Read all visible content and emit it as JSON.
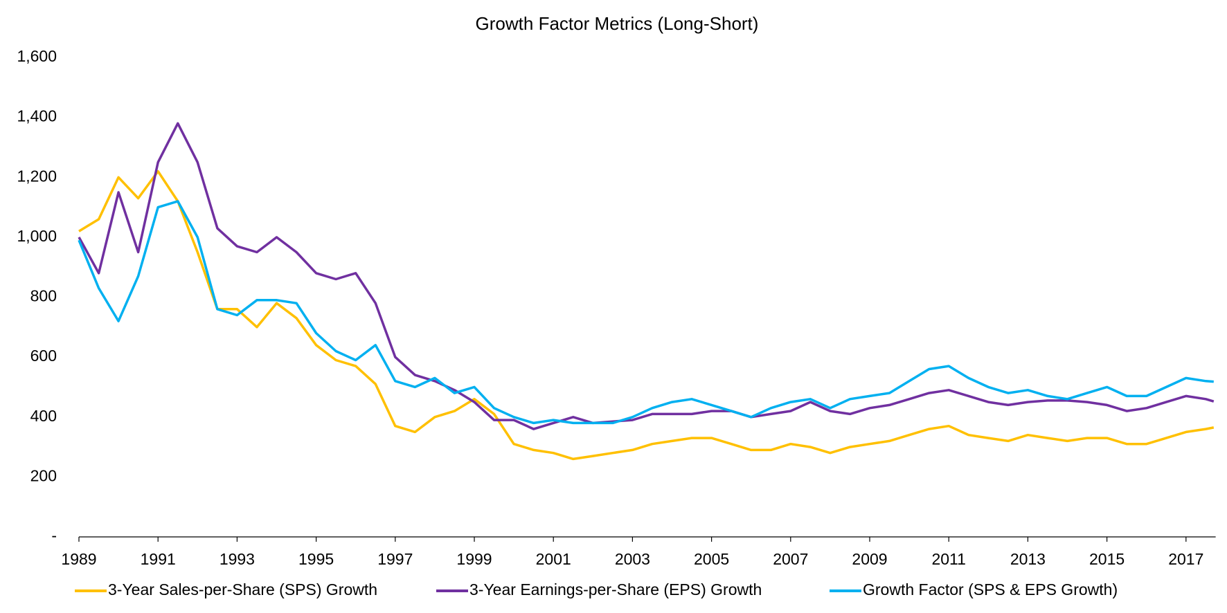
{
  "chart_data": {
    "type": "line",
    "title": "Growth Factor Metrics (Long-Short)",
    "x": [
      1989.0,
      1989.5,
      1990.0,
      1990.5,
      1991.0,
      1991.5,
      1992.0,
      1992.5,
      1993.0,
      1993.5,
      1994.0,
      1994.5,
      1995.0,
      1995.5,
      1996.0,
      1996.5,
      1997.0,
      1997.5,
      1998.0,
      1998.5,
      1999.0,
      1999.5,
      2000.0,
      2000.5,
      2001.0,
      2001.5,
      2002.0,
      2002.5,
      2003.0,
      2003.5,
      2004.0,
      2004.5,
      2005.0,
      2005.5,
      2006.0,
      2006.5,
      2007.0,
      2007.5,
      2008.0,
      2008.5,
      2009.0,
      2009.5,
      2010.0,
      2010.5,
      2011.0,
      2011.5,
      2012.0,
      2012.5,
      2013.0,
      2013.5,
      2014.0,
      2014.5,
      2015.0,
      2015.5,
      2016.0,
      2016.5,
      2017.0,
      2017.5,
      2017.7
    ],
    "series": [
      {
        "name": "3-Year Sales-per-Share (SPS) Growth",
        "color": "#FFC000",
        "values": [
          1020,
          1060,
          1200,
          1130,
          1220,
          1120,
          950,
          760,
          760,
          700,
          780,
          730,
          640,
          590,
          570,
          510,
          370,
          350,
          400,
          420,
          460,
          410,
          310,
          290,
          280,
          260,
          270,
          280,
          290,
          310,
          320,
          330,
          330,
          310,
          290,
          290,
          310,
          300,
          280,
          300,
          310,
          320,
          340,
          360,
          370,
          340,
          330,
          320,
          340,
          330,
          320,
          330,
          330,
          310,
          310,
          330,
          350,
          360,
          365
        ]
      },
      {
        "name": "3-Year Earnings-per-Share (EPS) Growth",
        "color": "#7030A0",
        "values": [
          1000,
          880,
          1150,
          950,
          1250,
          1380,
          1250,
          1030,
          970,
          950,
          1000,
          950,
          880,
          860,
          880,
          780,
          600,
          540,
          520,
          490,
          450,
          390,
          390,
          360,
          380,
          400,
          380,
          385,
          390,
          410,
          410,
          410,
          420,
          420,
          400,
          410,
          420,
          450,
          420,
          410,
          430,
          440,
          460,
          480,
          490,
          470,
          450,
          440,
          450,
          455,
          455,
          450,
          440,
          420,
          430,
          450,
          470,
          460,
          452
        ]
      },
      {
        "name": "Growth Factor (SPS & EPS Growth)",
        "color": "#00B0F0",
        "values": [
          990,
          830,
          720,
          870,
          1100,
          1120,
          1000,
          760,
          740,
          790,
          790,
          780,
          680,
          620,
          590,
          640,
          520,
          500,
          530,
          480,
          500,
          430,
          400,
          380,
          390,
          380,
          380,
          380,
          400,
          430,
          450,
          460,
          440,
          420,
          400,
          430,
          450,
          460,
          430,
          460,
          470,
          480,
          520,
          560,
          570,
          530,
          500,
          480,
          490,
          470,
          460,
          480,
          500,
          470,
          470,
          500,
          530,
          520,
          518
        ]
      }
    ],
    "xlim": [
      1989,
      2017.75
    ],
    "xticks": [
      1989,
      1991,
      1993,
      1995,
      1997,
      1999,
      2001,
      2003,
      2005,
      2007,
      2009,
      2011,
      2013,
      2015,
      2017
    ],
    "ylim": [
      0,
      1600
    ],
    "yticks": [
      {
        "value": 0,
        "label": "-"
      },
      200,
      400,
      600,
      800,
      {
        "value": 1000,
        "label": "1,000"
      },
      {
        "value": 1200,
        "label": "1,200"
      },
      {
        "value": 1400,
        "label": "1,400"
      },
      {
        "value": 1600,
        "label": "1,600"
      }
    ],
    "grid": false,
    "legend": "bottom"
  }
}
